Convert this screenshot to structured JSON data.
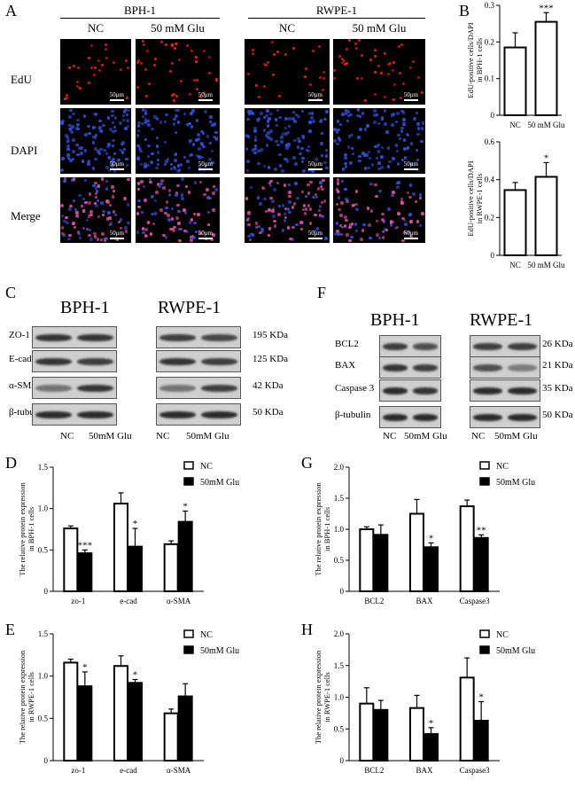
{
  "panels": {
    "A": "A",
    "B": "B",
    "C": "C",
    "D": "D",
    "E": "E",
    "F": "F",
    "G": "G",
    "H": "H"
  },
  "panelA": {
    "groups": [
      {
        "name": "BPH-1"
      },
      {
        "name": "RWPE-1"
      }
    ],
    "conditions": [
      "NC",
      "50 mM Glu"
    ],
    "rows": [
      "EdU",
      "DAPI",
      "Merge"
    ],
    "scale_label": "50μm"
  },
  "blotC": {
    "cells": [
      "BPH-1",
      "RWPE-1"
    ],
    "proteins": [
      "ZO-1",
      "E-cad",
      "α-SMA",
      "β-tubulin"
    ],
    "sizes": [
      "195 KDa",
      "125 KDa",
      "42 KDa",
      "50 KDa"
    ],
    "lanes": [
      "NC",
      "50mM Glu"
    ]
  },
  "blotF": {
    "cells": [
      "BPH-1",
      "RWPE-1"
    ],
    "proteins": [
      "BCL2",
      "BAX",
      "Caspase 3",
      "β-tubulin"
    ],
    "sizes": [
      "26 KDa",
      "21 KDa",
      "35 KDa",
      "50 KDa"
    ],
    "lanes": [
      "NC",
      "50mM Glu"
    ]
  },
  "colors": {
    "nc": "#ffffff",
    "glu": "#000000",
    "red_nuclei": "#ff2020",
    "blue_nuclei": "#2f4fd8",
    "merge": "#e04fa0"
  },
  "chart_data": [
    {
      "id": "B1",
      "type": "bar",
      "categories": [
        "NC",
        "50 mM Glu"
      ],
      "values": [
        0.185,
        0.255
      ],
      "errors": [
        0.04,
        0.025
      ],
      "sig": [
        "",
        "***"
      ],
      "ylabel": "EdU-positive cells/DAPI in BPH-1 cells",
      "ylim": [
        0,
        0.3
      ],
      "yticks": [
        0,
        0.1,
        0.2,
        0.3
      ]
    },
    {
      "id": "B2",
      "type": "bar",
      "categories": [
        "NC",
        "50 mM Glu"
      ],
      "values": [
        0.345,
        0.415
      ],
      "errors": [
        0.04,
        0.075
      ],
      "sig": [
        "",
        "*"
      ],
      "ylabel": "EdU-positive cells/DAPI in RWPE-1 cells",
      "ylim": [
        0,
        0.6
      ],
      "yticks": [
        0,
        0.2,
        0.4,
        0.6
      ]
    },
    {
      "id": "D",
      "type": "bar",
      "categories": [
        "zo-1",
        "e-cad",
        "α-SMA"
      ],
      "series": [
        {
          "name": "NC",
          "values": [
            0.76,
            1.06,
            0.57
          ],
          "errors": [
            0.03,
            0.13,
            0.04
          ]
        },
        {
          "name": "50mM Glu",
          "values": [
            0.46,
            0.54,
            0.84
          ],
          "errors": [
            0.04,
            0.22,
            0.13
          ]
        }
      ],
      "sig": [
        [
          "",
          "***"
        ],
        [
          "",
          "*"
        ],
        [
          "",
          "*"
        ]
      ],
      "ylabel": "The relative protein expression in BPH-1 cells",
      "ylim": [
        0,
        1.5
      ],
      "yticks": [
        0,
        0.5,
        1.0,
        1.5
      ],
      "legend": "top-right"
    },
    {
      "id": "E",
      "type": "bar",
      "categories": [
        "zo-1",
        "e-cad",
        "α-SMA"
      ],
      "series": [
        {
          "name": "NC",
          "values": [
            1.16,
            1.12,
            0.56
          ],
          "errors": [
            0.04,
            0.12,
            0.05
          ]
        },
        {
          "name": "50mM Glu",
          "values": [
            0.88,
            0.92,
            0.76
          ],
          "errors": [
            0.17,
            0.04,
            0.15
          ]
        }
      ],
      "sig": [
        [
          "",
          "*"
        ],
        [
          "",
          "*"
        ],
        [
          "",
          ""
        ]
      ],
      "ylabel": "The relative protein expression in RWPE-1 cells",
      "ylim": [
        0,
        1.5
      ],
      "yticks": [
        0,
        0.5,
        1.0,
        1.5
      ],
      "legend": "top-right"
    },
    {
      "id": "G",
      "type": "bar",
      "categories": [
        "BCL2",
        "BAX",
        "Caspase3"
      ],
      "series": [
        {
          "name": "NC",
          "values": [
            1.0,
            1.25,
            1.37
          ],
          "errors": [
            0.04,
            0.23,
            0.1
          ]
        },
        {
          "name": "50mM Glu",
          "values": [
            0.91,
            0.71,
            0.86
          ],
          "errors": [
            0.16,
            0.07,
            0.05
          ]
        }
      ],
      "sig": [
        [
          "",
          ""
        ],
        [
          "",
          "*"
        ],
        [
          "",
          "**"
        ]
      ],
      "ylabel": "The relative protein expression in BPH-1 cells",
      "ylim": [
        0,
        2.0
      ],
      "yticks": [
        0,
        0.5,
        1.0,
        1.5,
        2.0
      ],
      "legend": "top-right"
    },
    {
      "id": "H",
      "type": "bar",
      "categories": [
        "BCL2",
        "BAX",
        "Caspase3"
      ],
      "series": [
        {
          "name": "NC",
          "values": [
            0.9,
            0.83,
            1.31
          ],
          "errors": [
            0.25,
            0.2,
            0.31
          ]
        },
        {
          "name": "50mM Glu",
          "values": [
            0.8,
            0.42,
            0.63
          ],
          "errors": [
            0.15,
            0.1,
            0.3
          ]
        }
      ],
      "sig": [
        [
          "",
          ""
        ],
        [
          "",
          "*"
        ],
        [
          "",
          "*"
        ]
      ],
      "ylabel": "The relative protein expression in RWPE-1 cells",
      "ylim": [
        0,
        2.0
      ],
      "yticks": [
        0,
        0.5,
        1.0,
        1.5,
        2.0
      ],
      "legend": "top-right"
    }
  ]
}
